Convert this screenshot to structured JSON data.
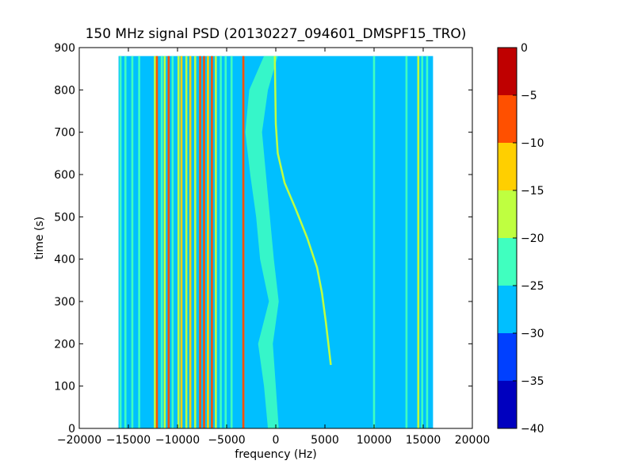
{
  "chart_data": {
    "type": "heatmap",
    "title": "150 MHz signal PSD (20130227_094601_DMSPF15_TRO)",
    "xlabel": "frequency (Hz)",
    "ylabel": "time (s)",
    "xlim": [
      -20000,
      20000
    ],
    "ylim": [
      0,
      900
    ],
    "xticks": [
      -20000,
      -15000,
      -10000,
      -5000,
      0,
      5000,
      10000,
      15000,
      20000
    ],
    "xtick_labels": [
      "−20000",
      "−15000",
      "−10000",
      "−5000",
      "0",
      "5000",
      "10000",
      "15000",
      "20000"
    ],
    "yticks": [
      0,
      100,
      200,
      300,
      400,
      500,
      600,
      700,
      800,
      900
    ],
    "ytick_labels": [
      "0",
      "100",
      "200",
      "300",
      "400",
      "500",
      "600",
      "700",
      "800",
      "900"
    ],
    "data_extent": {
      "freq": [
        -16000,
        16000
      ],
      "time": [
        0,
        880
      ]
    },
    "background_level": -27.5,
    "colorbar": {
      "levels": [
        -40,
        -35,
        -30,
        -25,
        -20,
        -15,
        -10,
        -5,
        0
      ],
      "tick_labels": [
        "−40",
        "−35",
        "−30",
        "−25",
        "−20",
        "−15",
        "−10",
        "−5",
        "0"
      ],
      "colors": [
        "#0000bf",
        "#0040ff",
        "#00bfff",
        "#40ffbf",
        "#bfff40",
        "#ffcf00",
        "#ff5000",
        "#bf0000"
      ]
    },
    "static_lines": [
      {
        "freq": -15800,
        "level": -22.5
      },
      {
        "freq": -15300,
        "level": -22.5
      },
      {
        "freq": -14600,
        "level": -22.5
      },
      {
        "freq": -13900,
        "level": -22.5
      },
      {
        "freq": -12300,
        "level": -17.5
      },
      {
        "freq": -12100,
        "level": -7.5
      },
      {
        "freq": -11600,
        "level": -22.5
      },
      {
        "freq": -11300,
        "level": -17.5
      },
      {
        "freq": -10900,
        "level": -7.5
      },
      {
        "freq": -10500,
        "level": -22.5
      },
      {
        "freq": -9900,
        "level": -17.5
      },
      {
        "freq": -9600,
        "level": -12.5
      },
      {
        "freq": -9100,
        "level": -17.5
      },
      {
        "freq": -8700,
        "level": -12.5
      },
      {
        "freq": -8200,
        "level": -17.5
      },
      {
        "freq": -7700,
        "level": -7.5
      },
      {
        "freq": -7300,
        "level": -7.5
      },
      {
        "freq": -6900,
        "level": -12.5
      },
      {
        "freq": -6500,
        "level": -7.5
      },
      {
        "freq": -6100,
        "level": -17.5
      },
      {
        "freq": -5600,
        "level": -22.5
      },
      {
        "freq": -5100,
        "level": -22.5
      },
      {
        "freq": -4500,
        "level": -22.5
      },
      {
        "freq": -3300,
        "level": -7.5
      },
      {
        "freq": 10000,
        "level": -22.5
      },
      {
        "freq": 13300,
        "level": -22.5
      },
      {
        "freq": 14500,
        "level": -17.5
      },
      {
        "freq": 14900,
        "level": -22.5
      },
      {
        "freq": 15400,
        "level": -22.5
      }
    ],
    "wander_band": {
      "level": -22.5,
      "points": [
        {
          "t": 0,
          "f0": -800,
          "f1": 300
        },
        {
          "t": 100,
          "f0": -1200,
          "f1": 0
        },
        {
          "t": 200,
          "f0": -1800,
          "f1": -300
        },
        {
          "t": 300,
          "f0": -700,
          "f1": 300
        },
        {
          "t": 400,
          "f0": -1600,
          "f1": -200
        },
        {
          "t": 500,
          "f0": -2000,
          "f1": -600
        },
        {
          "t": 600,
          "f0": -2600,
          "f1": -1000
        },
        {
          "t": 700,
          "f0": -3100,
          "f1": -1400
        },
        {
          "t": 800,
          "f0": -2700,
          "f1": -800
        },
        {
          "t": 880,
          "f0": -1200,
          "f1": 200
        }
      ]
    },
    "doppler_trace": {
      "level": -17.5,
      "points": [
        {
          "t": 150,
          "f": 5600
        },
        {
          "t": 250,
          "f": 5100
        },
        {
          "t": 320,
          "f": 4700
        },
        {
          "t": 380,
          "f": 4200
        },
        {
          "t": 450,
          "f": 3200
        },
        {
          "t": 520,
          "f": 2000
        },
        {
          "t": 580,
          "f": 900
        },
        {
          "t": 650,
          "f": 200
        },
        {
          "t": 720,
          "f": 0
        },
        {
          "t": 880,
          "f": -100
        }
      ]
    }
  }
}
